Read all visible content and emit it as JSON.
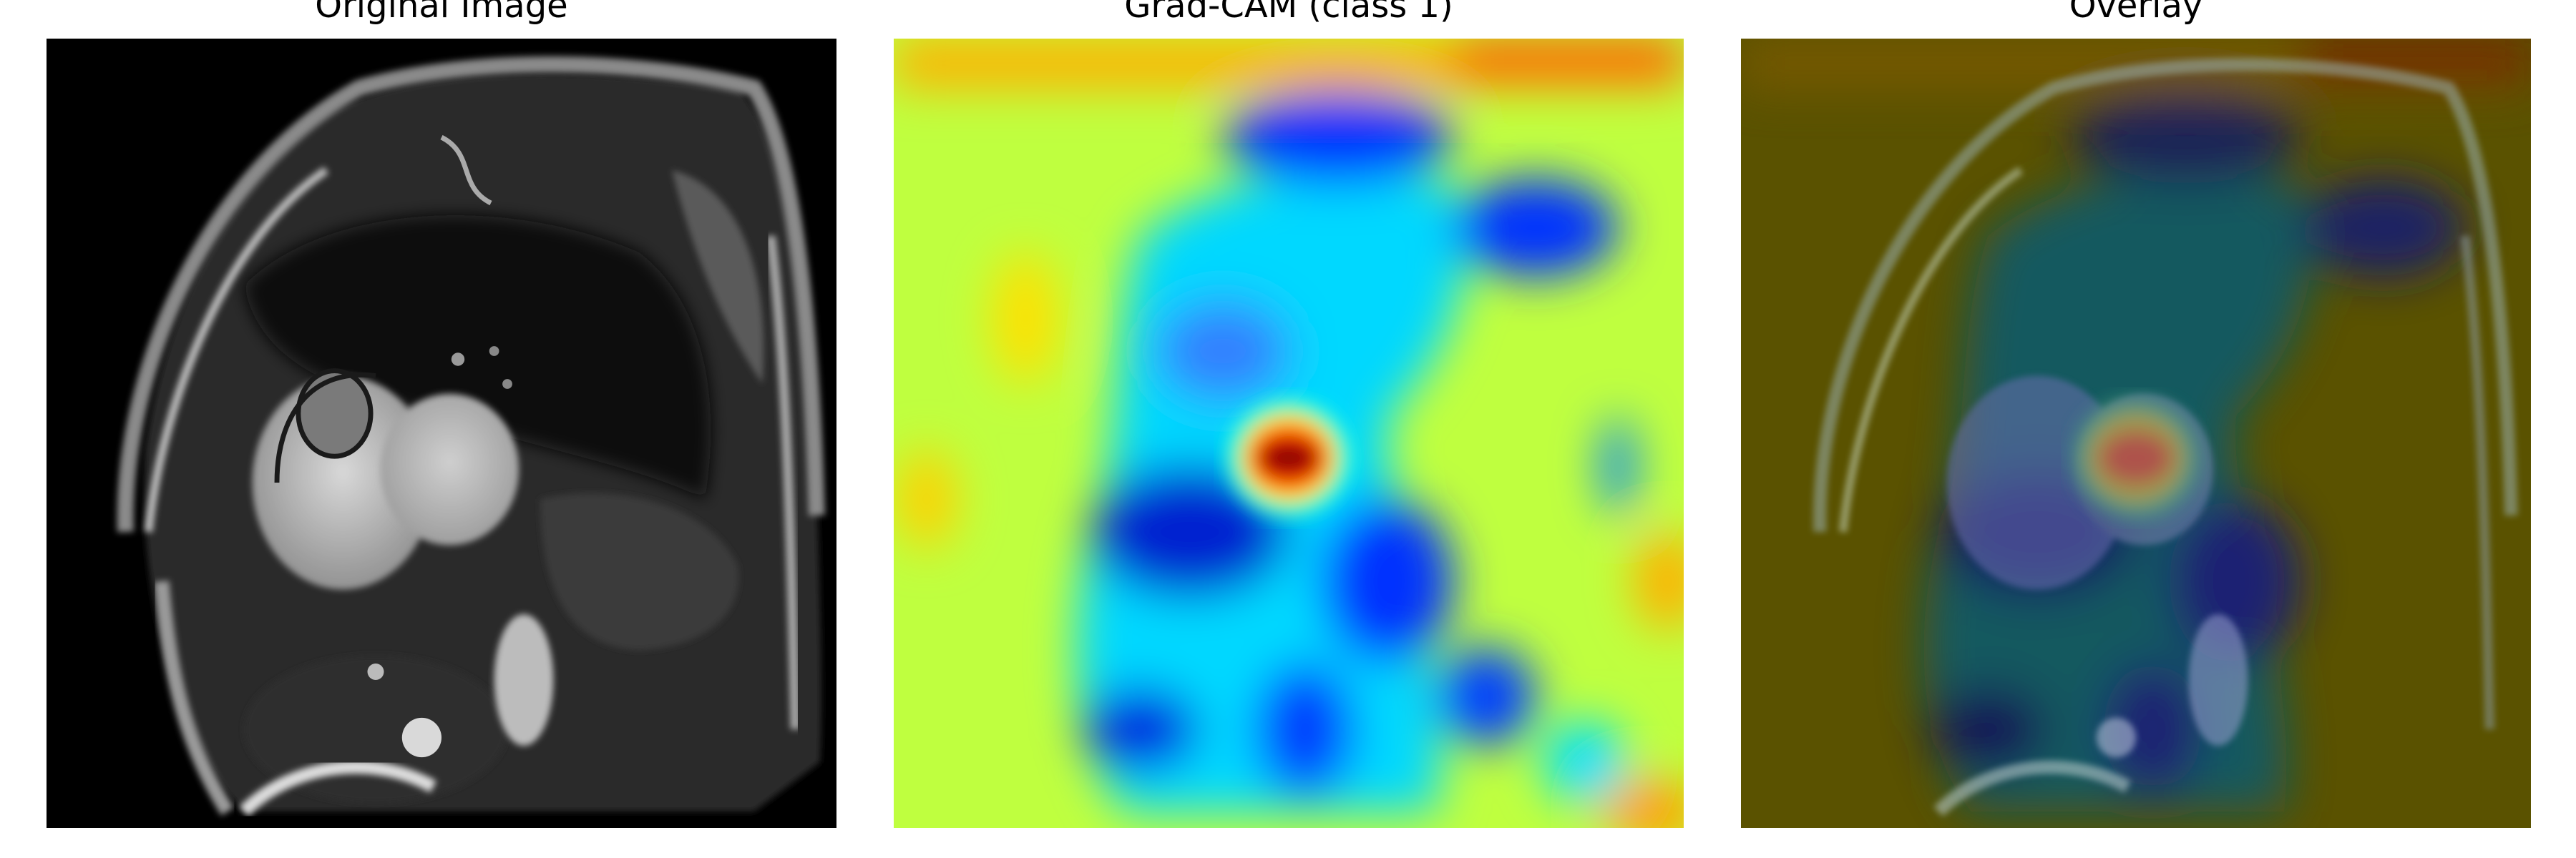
{
  "figure": {
    "panels": [
      {
        "title": "Original Image",
        "content": "grayscale cardiac MRI (short-axis slice)"
      },
      {
        "title": "Grad-CAM (class 1)",
        "content": "jet-colormap Grad-CAM heatmap"
      },
      {
        "title": "Overlay",
        "content": "heatmap blended over MRI"
      }
    ]
  },
  "colors": {
    "jet_low": "#00008b",
    "jet_mid": "#7fff7f",
    "jet_high": "#8b0000",
    "image_background": "#000000"
  }
}
